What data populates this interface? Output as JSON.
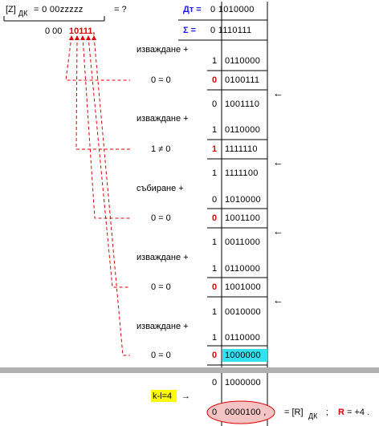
{
  "header": {
    "z_label": "[Z]",
    "z_sub": "ДК",
    "z_eq": "= 0 00zzzzz",
    "z_q": "= ?",
    "result_prefix": "0 00",
    "result_digits": "10111,",
    "dt_label": "Дт =",
    "dt_value": "0 1010000",
    "sigma_label": "Σ =",
    "sigma_value": "0 1110111"
  },
  "rows": [
    {
      "op": "изваждане +"
    },
    {
      "sign": "1",
      "value": "0110000"
    },
    {
      "cmp": "0 = 0",
      "sign": "0",
      "value": "0100111",
      "shift": "←"
    },
    {
      "sign": "0",
      "value": "1001110"
    },
    {
      "op": "изваждане +"
    },
    {
      "sign": "1",
      "value": "0110000"
    },
    {
      "cmp": "1 ≠ 0",
      "sign": "1",
      "value": "1111110",
      "shift": "←"
    },
    {
      "sign": "1",
      "value": "1111100"
    },
    {
      "op": "събиране +"
    },
    {
      "sign": "0",
      "value": "1010000"
    },
    {
      "cmp": "0 = 0",
      "sign": "0",
      "value": "1001100",
      "shift": "←"
    },
    {
      "sign": "1",
      "value": "0011000"
    },
    {
      "op": "изваждане +"
    },
    {
      "sign": "1",
      "value": "0110000"
    },
    {
      "cmp": "0 = 0",
      "sign": "0",
      "value": "1001000",
      "shift": "←"
    },
    {
      "sign": "1",
      "value": "0010000"
    },
    {
      "op": "изваждане +"
    },
    {
      "sign": "1",
      "value": "0110000"
    },
    {
      "cmp": "0 = 0",
      "sign": "0",
      "value": "1000000",
      "highlight": true
    },
    {
      "sign": "0",
      "value": "1000000"
    }
  ],
  "footer": {
    "kl": "k-l=4",
    "arrow": "→",
    "final_sign": "0",
    "final_value": "0000100 ,",
    "eq": "= [R]",
    "eq_sub": "ДК",
    "semi": ";",
    "r_label": "R",
    "r_value": "= +4 ."
  }
}
